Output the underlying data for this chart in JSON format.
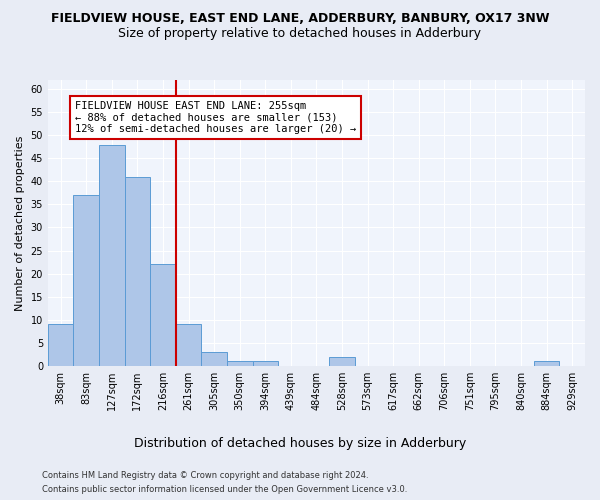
{
  "title": "FIELDVIEW HOUSE, EAST END LANE, ADDERBURY, BANBURY, OX17 3NW",
  "subtitle": "Size of property relative to detached houses in Adderbury",
  "xlabel": "Distribution of detached houses by size in Adderbury",
  "ylabel": "Number of detached properties",
  "footer_line1": "Contains HM Land Registry data © Crown copyright and database right 2024.",
  "footer_line2": "Contains public sector information licensed under the Open Government Licence v3.0.",
  "bar_labels": [
    "38sqm",
    "83sqm",
    "127sqm",
    "172sqm",
    "216sqm",
    "261sqm",
    "305sqm",
    "350sqm",
    "394sqm",
    "439sqm",
    "484sqm",
    "528sqm",
    "573sqm",
    "617sqm",
    "662sqm",
    "706sqm",
    "751sqm",
    "795sqm",
    "840sqm",
    "884sqm",
    "929sqm"
  ],
  "bar_values": [
    9,
    37,
    48,
    41,
    22,
    9,
    3,
    1,
    1,
    0,
    0,
    2,
    0,
    0,
    0,
    0,
    0,
    0,
    0,
    1,
    0
  ],
  "bar_color": "#aec6e8",
  "bar_edge_color": "#5b9bd5",
  "annotation_text_line1": "FIELDVIEW HOUSE EAST END LANE: 255sqm",
  "annotation_text_line2": "← 88% of detached houses are smaller (153)",
  "annotation_text_line3": "12% of semi-detached houses are larger (20) →",
  "annotation_box_color": "#ffffff",
  "annotation_box_edge_color": "#cc0000",
  "vline_color": "#cc0000",
  "vline_x": 4.5,
  "ylim": [
    0,
    62
  ],
  "yticks": [
    0,
    5,
    10,
    15,
    20,
    25,
    30,
    35,
    40,
    45,
    50,
    55,
    60
  ],
  "bg_color": "#e8ecf5",
  "plot_bg_color": "#f0f4fc",
  "grid_color": "#ffffff",
  "title_fontsize": 9,
  "subtitle_fontsize": 9,
  "ylabel_fontsize": 8,
  "xlabel_fontsize": 9,
  "tick_fontsize": 7,
  "footer_fontsize": 6,
  "annot_fontsize": 7.5
}
